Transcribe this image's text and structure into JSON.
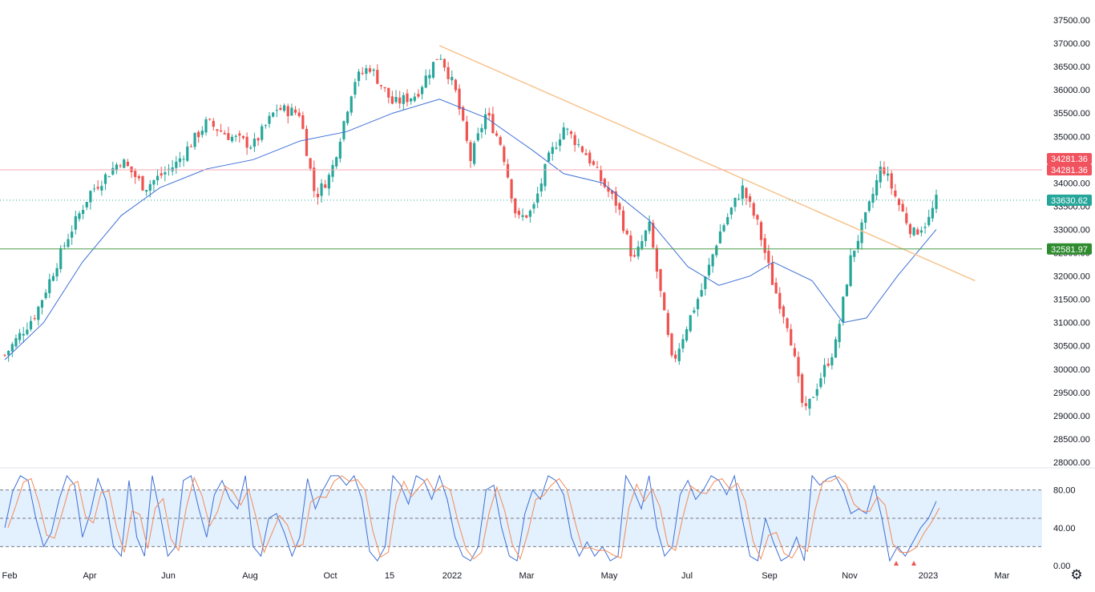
{
  "chart_data": {
    "type": "candlestick",
    "main": {
      "y_ticks": [
        "37500.00",
        "37000.00",
        "36500.00",
        "36000.00",
        "35500.00",
        "35000.00",
        "34500.00",
        "34000.00",
        "33500.00",
        "33000.00",
        "32500.00",
        "32000.00",
        "31500.00",
        "31000.00",
        "30500.00",
        "30000.00",
        "29500.00",
        "29000.00",
        "28500.00",
        "28000.00"
      ],
      "ylim": [
        28000,
        37500
      ],
      "x_ticks": [
        "Feb",
        "Apr",
        "Jun",
        "Aug",
        "Oct",
        "15",
        "2022",
        "Mar",
        "May",
        "Jul",
        "Sep",
        "Nov",
        "2023",
        "Mar"
      ],
      "close_path": [
        {
          "t": 0,
          "v": 30300
        },
        {
          "t": 4,
          "v": 31200
        },
        {
          "t": 8,
          "v": 32800
        },
        {
          "t": 11,
          "v": 33800
        },
        {
          "t": 15,
          "v": 34500
        },
        {
          "t": 18,
          "v": 33900
        },
        {
          "t": 22,
          "v": 34400
        },
        {
          "t": 26,
          "v": 35300
        },
        {
          "t": 29,
          "v": 35000
        },
        {
          "t": 32,
          "v": 34800
        },
        {
          "t": 35,
          "v": 35600
        },
        {
          "t": 38,
          "v": 35500
        },
        {
          "t": 40,
          "v": 33700
        },
        {
          "t": 42,
          "v": 34200
        },
        {
          "t": 45,
          "v": 36200
        },
        {
          "t": 47,
          "v": 36500
        },
        {
          "t": 50,
          "v": 35700
        },
        {
          "t": 53,
          "v": 35900
        },
        {
          "t": 56,
          "v": 36800
        },
        {
          "t": 58,
          "v": 36000
        },
        {
          "t": 60,
          "v": 34500
        },
        {
          "t": 62,
          "v": 35500
        },
        {
          "t": 64,
          "v": 34800
        },
        {
          "t": 66,
          "v": 33200
        },
        {
          "t": 68,
          "v": 33400
        },
        {
          "t": 70,
          "v": 34500
        },
        {
          "t": 72,
          "v": 35200
        },
        {
          "t": 75,
          "v": 34600
        },
        {
          "t": 77,
          "v": 34000
        },
        {
          "t": 79,
          "v": 33500
        },
        {
          "t": 81,
          "v": 32300
        },
        {
          "t": 83,
          "v": 33100
        },
        {
          "t": 85,
          "v": 31100
        },
        {
          "t": 86,
          "v": 30100
        },
        {
          "t": 88,
          "v": 31000
        },
        {
          "t": 90,
          "v": 31800
        },
        {
          "t": 92,
          "v": 32900
        },
        {
          "t": 95,
          "v": 33900
        },
        {
          "t": 97,
          "v": 33100
        },
        {
          "t": 99,
          "v": 31800
        },
        {
          "t": 101,
          "v": 30900
        },
        {
          "t": 103,
          "v": 29000
        },
        {
          "t": 105,
          "v": 29800
        },
        {
          "t": 107,
          "v": 30500
        },
        {
          "t": 109,
          "v": 32400
        },
        {
          "t": 111,
          "v": 33300
        },
        {
          "t": 113,
          "v": 34400
        },
        {
          "t": 115,
          "v": 33600
        },
        {
          "t": 117,
          "v": 32900
        },
        {
          "t": 119,
          "v": 33200
        },
        {
          "t": 120,
          "v": 33630
        }
      ],
      "moving_average": [
        {
          "t": 0,
          "v": 30200
        },
        {
          "t": 5,
          "v": 31000
        },
        {
          "t": 10,
          "v": 32300
        },
        {
          "t": 15,
          "v": 33300
        },
        {
          "t": 20,
          "v": 33900
        },
        {
          "t": 26,
          "v": 34300
        },
        {
          "t": 32,
          "v": 34500
        },
        {
          "t": 38,
          "v": 34900
        },
        {
          "t": 44,
          "v": 35100
        },
        {
          "t": 50,
          "v": 35500
        },
        {
          "t": 56,
          "v": 35800
        },
        {
          "t": 62,
          "v": 35400
        },
        {
          "t": 68,
          "v": 34700
        },
        {
          "t": 72,
          "v": 34200
        },
        {
          "t": 77,
          "v": 34000
        },
        {
          "t": 83,
          "v": 33200
        },
        {
          "t": 88,
          "v": 32200
        },
        {
          "t": 92,
          "v": 31800
        },
        {
          "t": 96,
          "v": 32000
        },
        {
          "t": 99,
          "v": 32300
        },
        {
          "t": 104,
          "v": 31900
        },
        {
          "t": 108,
          "v": 31000
        },
        {
          "t": 111,
          "v": 31100
        },
        {
          "t": 115,
          "v": 32000
        },
        {
          "t": 118,
          "v": 32600
        },
        {
          "t": 120,
          "v": 33000
        }
      ],
      "trendline": {
        "start": {
          "t": 56,
          "v": 36950
        },
        "end": {
          "t": 125,
          "v": 31900
        },
        "color": "#f7c48e"
      },
      "levels": [
        {
          "value": 34281.36,
          "label": "34281.36",
          "color": "#f0525e",
          "style": "solid",
          "line_color": "#f7a8b0"
        },
        {
          "value": 32581.97,
          "label": "32581.97",
          "color": "#2e8b2e",
          "style": "solid",
          "line_color": "#4a9d4a"
        }
      ],
      "extra_label": {
        "value": 34281.36,
        "label": "34281.36",
        "color": "#f0525e"
      },
      "last_price": {
        "value": 33630.62,
        "label": "33630.62",
        "color": "#26a69a"
      },
      "up_color": "#26a69a",
      "down_color": "#ef5350",
      "ma_color": "#3d6fd6"
    },
    "oscillator": {
      "y_ticks": [
        "80.00",
        "40.00",
        "0.00"
      ],
      "ylim": [
        0,
        100
      ],
      "bands": [
        80,
        50,
        20
      ],
      "band_fill": "#e3f0fd",
      "k_color": "#3d6fd6",
      "d_color": "#f28b5a",
      "k_path": [
        {
          "t": 0,
          "v": 40
        },
        {
          "t": 1,
          "v": 78
        },
        {
          "t": 2,
          "v": 95
        },
        {
          "t": 3,
          "v": 90
        },
        {
          "t": 4,
          "v": 50
        },
        {
          "t": 5,
          "v": 20
        },
        {
          "t": 6,
          "v": 35
        },
        {
          "t": 7,
          "v": 70
        },
        {
          "t": 8,
          "v": 95
        },
        {
          "t": 9,
          "v": 85
        },
        {
          "t": 10,
          "v": 30
        },
        {
          "t": 11,
          "v": 55
        },
        {
          "t": 12,
          "v": 92
        },
        {
          "t": 13,
          "v": 70
        },
        {
          "t": 14,
          "v": 20
        },
        {
          "t": 15,
          "v": 10
        },
        {
          "t": 16,
          "v": 90
        },
        {
          "t": 17,
          "v": 30
        },
        {
          "t": 18,
          "v": 10
        },
        {
          "t": 19,
          "v": 95
        },
        {
          "t": 20,
          "v": 55
        },
        {
          "t": 21,
          "v": 10
        },
        {
          "t": 22,
          "v": 20
        },
        {
          "t": 23,
          "v": 90
        },
        {
          "t": 24,
          "v": 95
        },
        {
          "t": 25,
          "v": 60
        },
        {
          "t": 26,
          "v": 30
        },
        {
          "t": 27,
          "v": 75
        },
        {
          "t": 28,
          "v": 90
        },
        {
          "t": 29,
          "v": 70
        },
        {
          "t": 30,
          "v": 60
        },
        {
          "t": 31,
          "v": 95
        },
        {
          "t": 32,
          "v": 20
        },
        {
          "t": 33,
          "v": 10
        },
        {
          "t": 34,
          "v": 50
        },
        {
          "t": 35,
          "v": 55
        },
        {
          "t": 36,
          "v": 35
        },
        {
          "t": 37,
          "v": 10
        },
        {
          "t": 38,
          "v": 30
        },
        {
          "t": 39,
          "v": 92
        },
        {
          "t": 40,
          "v": 60
        },
        {
          "t": 41,
          "v": 80
        },
        {
          "t": 42,
          "v": 95
        },
        {
          "t": 43,
          "v": 95
        },
        {
          "t": 44,
          "v": 85
        },
        {
          "t": 45,
          "v": 95
        },
        {
          "t": 46,
          "v": 70
        },
        {
          "t": 47,
          "v": 15
        },
        {
          "t": 48,
          "v": 5
        },
        {
          "t": 49,
          "v": 20
        },
        {
          "t": 50,
          "v": 95
        },
        {
          "t": 51,
          "v": 85
        },
        {
          "t": 52,
          "v": 65
        },
        {
          "t": 53,
          "v": 95
        },
        {
          "t": 54,
          "v": 90
        },
        {
          "t": 55,
          "v": 70
        },
        {
          "t": 56,
          "v": 95
        },
        {
          "t": 57,
          "v": 70
        },
        {
          "t": 58,
          "v": 30
        },
        {
          "t": 59,
          "v": 10
        },
        {
          "t": 60,
          "v": 5
        },
        {
          "t": 61,
          "v": 20
        },
        {
          "t": 62,
          "v": 80
        },
        {
          "t": 63,
          "v": 85
        },
        {
          "t": 64,
          "v": 40
        },
        {
          "t": 65,
          "v": 10
        },
        {
          "t": 66,
          "v": 5
        },
        {
          "t": 67,
          "v": 55
        },
        {
          "t": 68,
          "v": 80
        },
        {
          "t": 69,
          "v": 70
        },
        {
          "t": 70,
          "v": 95
        },
        {
          "t": 71,
          "v": 90
        },
        {
          "t": 72,
          "v": 75
        },
        {
          "t": 73,
          "v": 30
        },
        {
          "t": 74,
          "v": 10
        },
        {
          "t": 75,
          "v": 25
        },
        {
          "t": 76,
          "v": 10
        },
        {
          "t": 77,
          "v": 20
        },
        {
          "t": 78,
          "v": 5
        },
        {
          "t": 79,
          "v": 10
        },
        {
          "t": 80,
          "v": 95
        },
        {
          "t": 81,
          "v": 80
        },
        {
          "t": 82,
          "v": 60
        },
        {
          "t": 83,
          "v": 95
        },
        {
          "t": 84,
          "v": 40
        },
        {
          "t": 85,
          "v": 10
        },
        {
          "t": 86,
          "v": 20
        },
        {
          "t": 87,
          "v": 75
        },
        {
          "t": 88,
          "v": 90
        },
        {
          "t": 89,
          "v": 70
        },
        {
          "t": 90,
          "v": 80
        },
        {
          "t": 91,
          "v": 95
        },
        {
          "t": 92,
          "v": 90
        },
        {
          "t": 93,
          "v": 75
        },
        {
          "t": 94,
          "v": 95
        },
        {
          "t": 95,
          "v": 50
        },
        {
          "t": 96,
          "v": 10
        },
        {
          "t": 97,
          "v": 5
        },
        {
          "t": 98,
          "v": 50
        },
        {
          "t": 99,
          "v": 25
        },
        {
          "t": 100,
          "v": 5
        },
        {
          "t": 101,
          "v": 10
        },
        {
          "t": 102,
          "v": 30
        },
        {
          "t": 103,
          "v": 5
        },
        {
          "t": 104,
          "v": 95
        },
        {
          "t": 105,
          "v": 85
        },
        {
          "t": 106,
          "v": 92
        },
        {
          "t": 107,
          "v": 95
        },
        {
          "t": 108,
          "v": 80
        },
        {
          "t": 109,
          "v": 55
        },
        {
          "t": 110,
          "v": 60
        },
        {
          "t": 111,
          "v": 55
        },
        {
          "t": 112,
          "v": 85
        },
        {
          "t": 113,
          "v": 50
        },
        {
          "t": 114,
          "v": 5
        },
        {
          "t": 115,
          "v": 20
        },
        {
          "t": 116,
          "v": 10
        },
        {
          "t": 117,
          "v": 25
        },
        {
          "t": 118,
          "v": 40
        },
        {
          "t": 119,
          "v": 50
        },
        {
          "t": 120,
          "v": 68
        }
      ]
    }
  }
}
